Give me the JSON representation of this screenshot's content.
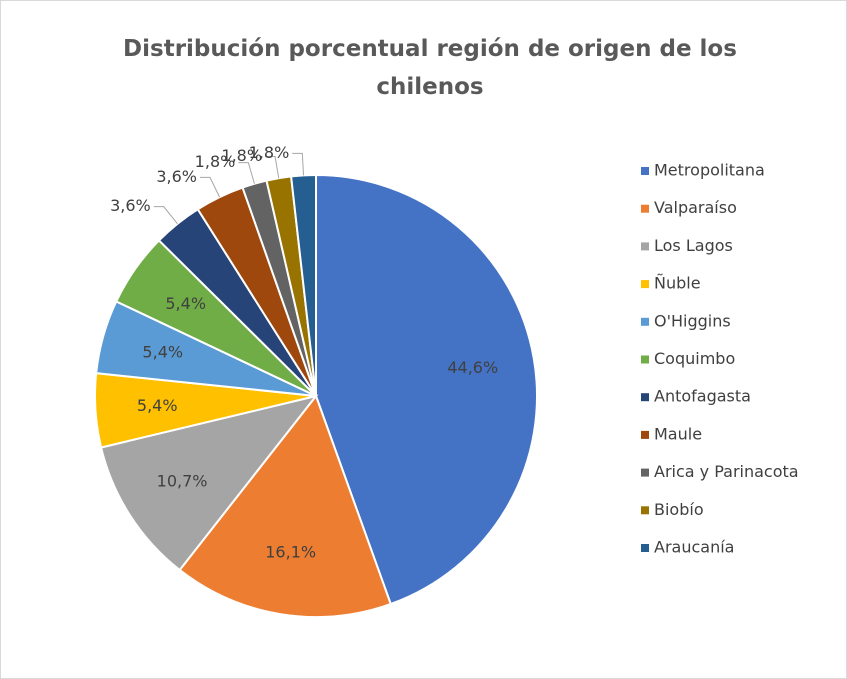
{
  "chart_data": {
    "type": "pie",
    "title": "Distribución porcentual región de origen de los chilenos",
    "categories": [
      "Metropolitana",
      "Valparaíso",
      "Los Lagos",
      "Ñuble",
      "O'Higgins",
      "Coquimbo",
      "Antofagasta",
      "Maule",
      "Arica y Parinacota",
      "Biobío",
      "Araucanía"
    ],
    "values": [
      44.6,
      16.1,
      10.7,
      5.4,
      5.4,
      5.4,
      3.6,
      3.6,
      1.8,
      1.8,
      1.8
    ],
    "value_labels": [
      "44,6%",
      "16,1%",
      "10,7%",
      "5,4%",
      "5,4%",
      "5,4%",
      "3,6%",
      "3,6%",
      "1,8%",
      "1,8%",
      "1,8%"
    ],
    "colors": [
      "#4472c4",
      "#ed7d31",
      "#a5a5a5",
      "#ffc000",
      "#5b9bd5",
      "#70ad47",
      "#264478",
      "#9e480e",
      "#636363",
      "#997300",
      "#255e91"
    ],
    "legend": "right"
  }
}
